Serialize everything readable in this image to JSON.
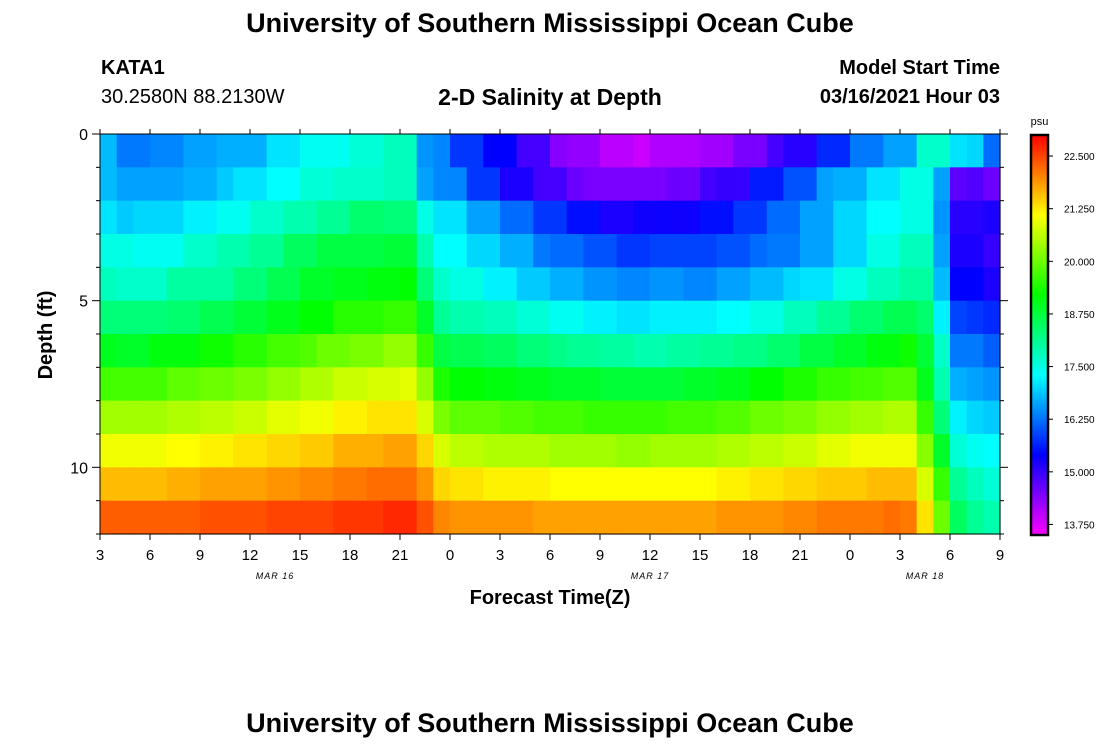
{
  "header": {
    "title": "University of Southern Mississippi Ocean Cube",
    "footer_title": "University of Southern Mississippi Ocean Cube",
    "station": "KATA1",
    "coordinates": "30.2580N 88.2130W",
    "model_start_label": "Model Start Time",
    "model_start_value": "03/16/2021 Hour 03"
  },
  "chart_data": {
    "type": "heatmap",
    "title": "2-D Salinity at Depth",
    "xlabel": "Forecast Time(Z)",
    "ylabel": "Depth (ft)",
    "x_hours": [
      0,
      3,
      6,
      9,
      12,
      15,
      18,
      21,
      24,
      27,
      30,
      33,
      36,
      39,
      42,
      45,
      48,
      51,
      54
    ],
    "x_tick_labels": [
      "3",
      "6",
      "9",
      "12",
      "15",
      "18",
      "21",
      "0",
      "3",
      "6",
      "9",
      "12",
      "15",
      "18",
      "21",
      "0",
      "3",
      "6",
      "9"
    ],
    "date_labels": [
      {
        "text": "MAR 16",
        "hour": 10.5
      },
      {
        "text": "MAR 17",
        "hour": 33
      },
      {
        "text": "MAR 18",
        "hour": 49.5
      }
    ],
    "y_ticks": [
      0,
      5,
      10
    ],
    "ylim": [
      0,
      12
    ],
    "depth_levels": 12,
    "time_steps": 54,
    "xlim": [
      0,
      54
    ],
    "colorbar": {
      "unit": "psu",
      "min": 13.5,
      "max": 23.0,
      "ticks": [
        "13.750",
        "15.000",
        "16.250",
        "17.500",
        "18.750",
        "20.000",
        "21.250",
        "22.500"
      ],
      "tick_values": [
        13.75,
        15.0,
        16.25,
        17.5,
        18.75,
        20.0,
        21.25,
        22.5
      ],
      "colors": [
        "#ff00ff",
        "#8000ff",
        "#0000ff",
        "#0080ff",
        "#00ffff",
        "#00ff80",
        "#00ff00",
        "#80ff00",
        "#ffff00",
        "#ff8000",
        "#ff0000"
      ]
    },
    "salinity_grid": [
      [
        16.8,
        16.3,
        16.3,
        16.4,
        16.4,
        16.6,
        16.6,
        16.7,
        16.7,
        16.7,
        17.1,
        17.1,
        17.4,
        17.4,
        17.4,
        17.6,
        17.6,
        17.8,
        17.8,
        16.5,
        16.4,
        15.8,
        15.8,
        15.4,
        15.4,
        14.9,
        14.9,
        14.4,
        14.3,
        14.3,
        14.0,
        14.0,
        13.9,
        14.1,
        14.1,
        14.1,
        14.2,
        14.2,
        14.5,
        14.5,
        14.9,
        15.1,
        15.1,
        15.7,
        15.7,
        16.3,
        16.3,
        16.6,
        16.6,
        17.7,
        17.7,
        17.1,
        17.0,
        16.2
      ],
      [
        16.8,
        16.6,
        16.6,
        16.6,
        16.6,
        16.7,
        16.7,
        16.9,
        17.1,
        17.1,
        17.3,
        17.3,
        17.6,
        17.6,
        17.7,
        17.7,
        17.7,
        17.8,
        17.8,
        16.6,
        16.4,
        16.4,
        15.8,
        15.8,
        15.2,
        15.2,
        14.9,
        14.9,
        14.6,
        14.5,
        14.5,
        14.5,
        14.5,
        14.5,
        14.6,
        14.6,
        14.9,
        15.0,
        15.0,
        15.6,
        15.6,
        16.0,
        16.0,
        16.6,
        16.7,
        16.7,
        17.1,
        17.1,
        17.5,
        17.5,
        16.6,
        14.7,
        14.8,
        14.6
      ],
      [
        17.1,
        16.9,
        17.0,
        17.0,
        17.0,
        17.2,
        17.2,
        17.4,
        17.4,
        17.7,
        17.7,
        17.9,
        17.9,
        18.1,
        18.1,
        18.4,
        18.4,
        18.3,
        18.3,
        17.5,
        17.1,
        17.1,
        16.6,
        16.6,
        16.2,
        16.2,
        15.8,
        15.8,
        15.5,
        15.5,
        15.2,
        15.2,
        15.3,
        15.3,
        15.3,
        15.3,
        15.5,
        15.5,
        15.8,
        15.8,
        16.2,
        16.2,
        16.6,
        16.6,
        17.0,
        17.0,
        17.3,
        17.3,
        17.5,
        17.5,
        16.5,
        15.1,
        15.1,
        15.2
      ],
      [
        17.5,
        17.5,
        17.4,
        17.4,
        17.4,
        17.7,
        17.7,
        17.9,
        17.9,
        18.1,
        18.1,
        18.5,
        18.5,
        18.7,
        18.7,
        18.7,
        18.7,
        18.8,
        18.8,
        17.9,
        17.3,
        17.3,
        17.0,
        17.0,
        16.7,
        16.7,
        16.3,
        16.2,
        16.2,
        16.0,
        16.0,
        15.8,
        15.8,
        15.9,
        15.9,
        15.9,
        15.9,
        16.0,
        16.0,
        16.2,
        16.3,
        16.3,
        16.6,
        16.6,
        17.0,
        17.0,
        17.5,
        17.5,
        17.8,
        17.8,
        16.6,
        15.2,
        15.2,
        15.0
      ],
      [
        17.8,
        17.7,
        17.7,
        17.7,
        18.0,
        18.0,
        18.0,
        18.0,
        18.3,
        18.3,
        18.6,
        18.6,
        18.9,
        18.9,
        19.0,
        19.0,
        19.1,
        19.1,
        19.2,
        18.3,
        17.7,
        17.5,
        17.5,
        17.2,
        17.2,
        16.9,
        16.9,
        16.7,
        16.7,
        16.5,
        16.5,
        16.4,
        16.4,
        16.5,
        16.5,
        16.4,
        16.4,
        16.6,
        16.6,
        16.8,
        16.8,
        17.0,
        17.1,
        17.1,
        17.5,
        17.5,
        17.8,
        17.8,
        18.0,
        18.0,
        16.8,
        15.4,
        15.4,
        15.2
      ],
      [
        18.3,
        18.3,
        18.3,
        18.3,
        18.4,
        18.4,
        18.6,
        18.6,
        18.8,
        18.8,
        19.0,
        19.0,
        19.2,
        19.2,
        19.5,
        19.5,
        19.5,
        19.6,
        19.6,
        18.9,
        18.1,
        17.9,
        17.9,
        17.8,
        17.8,
        17.6,
        17.6,
        17.4,
        17.4,
        17.2,
        17.2,
        17.1,
        17.1,
        17.2,
        17.2,
        17.2,
        17.2,
        17.3,
        17.3,
        17.5,
        17.5,
        17.8,
        17.8,
        18.1,
        18.1,
        18.4,
        18.4,
        18.6,
        18.6,
        18.4,
        17.2,
        15.9,
        15.8,
        15.7
      ],
      [
        19.0,
        18.9,
        18.9,
        19.1,
        19.1,
        19.1,
        19.3,
        19.3,
        19.5,
        19.5,
        19.7,
        19.7,
        19.8,
        20.0,
        20.0,
        20.1,
        20.1,
        20.3,
        20.3,
        19.6,
        18.7,
        18.6,
        18.6,
        18.5,
        18.5,
        18.3,
        18.3,
        18.2,
        18.1,
        18.1,
        18.0,
        18.0,
        17.9,
        17.9,
        18.0,
        18.0,
        18.1,
        18.1,
        18.2,
        18.2,
        18.4,
        18.4,
        18.7,
        18.7,
        18.9,
        18.9,
        19.1,
        19.1,
        19.3,
        18.8,
        17.7,
        16.3,
        16.3,
        16.1
      ],
      [
        19.7,
        19.7,
        19.7,
        19.7,
        19.9,
        19.9,
        20.0,
        20.0,
        20.1,
        20.1,
        20.3,
        20.3,
        20.5,
        20.5,
        20.7,
        20.7,
        20.8,
        20.8,
        20.9,
        20.3,
        19.4,
        19.2,
        19.2,
        19.1,
        19.1,
        19.0,
        19.0,
        18.9,
        18.9,
        18.9,
        18.8,
        18.8,
        18.8,
        18.8,
        18.8,
        18.9,
        18.9,
        19.0,
        19.0,
        19.2,
        19.2,
        19.4,
        19.4,
        19.6,
        19.6,
        19.7,
        19.7,
        19.8,
        19.8,
        19.0,
        17.9,
        16.7,
        16.6,
        16.5
      ],
      [
        20.4,
        20.4,
        20.4,
        20.4,
        20.5,
        20.5,
        20.6,
        20.6,
        20.7,
        20.7,
        20.9,
        20.9,
        21.0,
        21.0,
        21.2,
        21.2,
        21.3,
        21.3,
        21.3,
        20.8,
        20.1,
        19.9,
        19.9,
        19.9,
        19.8,
        19.8,
        19.7,
        19.7,
        19.7,
        19.6,
        19.6,
        19.6,
        19.6,
        19.6,
        19.7,
        19.7,
        19.7,
        19.8,
        19.8,
        20.0,
        20.0,
        20.1,
        20.1,
        20.3,
        20.3,
        20.4,
        20.4,
        20.5,
        20.5,
        19.6,
        18.3,
        17.2,
        17.0,
        16.9
      ],
      [
        21.0,
        21.0,
        21.0,
        21.0,
        21.1,
        21.1,
        21.2,
        21.2,
        21.3,
        21.3,
        21.4,
        21.4,
        21.5,
        21.5,
        21.7,
        21.7,
        21.7,
        21.8,
        21.8,
        21.4,
        20.8,
        20.6,
        20.6,
        20.5,
        20.5,
        20.5,
        20.5,
        20.4,
        20.4,
        20.4,
        20.4,
        20.3,
        20.3,
        20.4,
        20.4,
        20.4,
        20.4,
        20.5,
        20.5,
        20.6,
        20.6,
        20.7,
        20.7,
        20.9,
        20.9,
        21.0,
        21.0,
        21.0,
        21.0,
        20.2,
        18.9,
        17.6,
        17.4,
        17.3
      ],
      [
        21.6,
        21.6,
        21.6,
        21.6,
        21.7,
        21.7,
        21.8,
        21.8,
        21.8,
        21.8,
        21.9,
        21.9,
        22.0,
        22.0,
        22.1,
        22.1,
        22.2,
        22.2,
        22.2,
        21.9,
        21.4,
        21.3,
        21.3,
        21.2,
        21.2,
        21.2,
        21.2,
        21.1,
        21.1,
        21.1,
        21.1,
        21.1,
        21.1,
        21.1,
        21.1,
        21.1,
        21.1,
        21.2,
        21.2,
        21.3,
        21.3,
        21.4,
        21.4,
        21.5,
        21.5,
        21.5,
        21.6,
        21.6,
        21.6,
        20.8,
        19.6,
        18.1,
        17.8,
        17.6
      ],
      [
        22.3,
        22.3,
        22.3,
        22.3,
        22.3,
        22.3,
        22.4,
        22.4,
        22.4,
        22.4,
        22.5,
        22.5,
        22.5,
        22.5,
        22.6,
        22.6,
        22.6,
        22.7,
        22.7,
        22.4,
        22.0,
        21.9,
        21.9,
        21.9,
        21.9,
        21.9,
        21.8,
        21.8,
        21.8,
        21.8,
        21.8,
        21.8,
        21.8,
        21.8,
        21.8,
        21.8,
        21.8,
        21.9,
        21.9,
        21.9,
        21.9,
        22.0,
        22.0,
        22.1,
        22.1,
        22.1,
        22.1,
        22.2,
        22.1,
        21.3,
        20.0,
        18.5,
        18.1,
        17.9
      ]
    ]
  }
}
